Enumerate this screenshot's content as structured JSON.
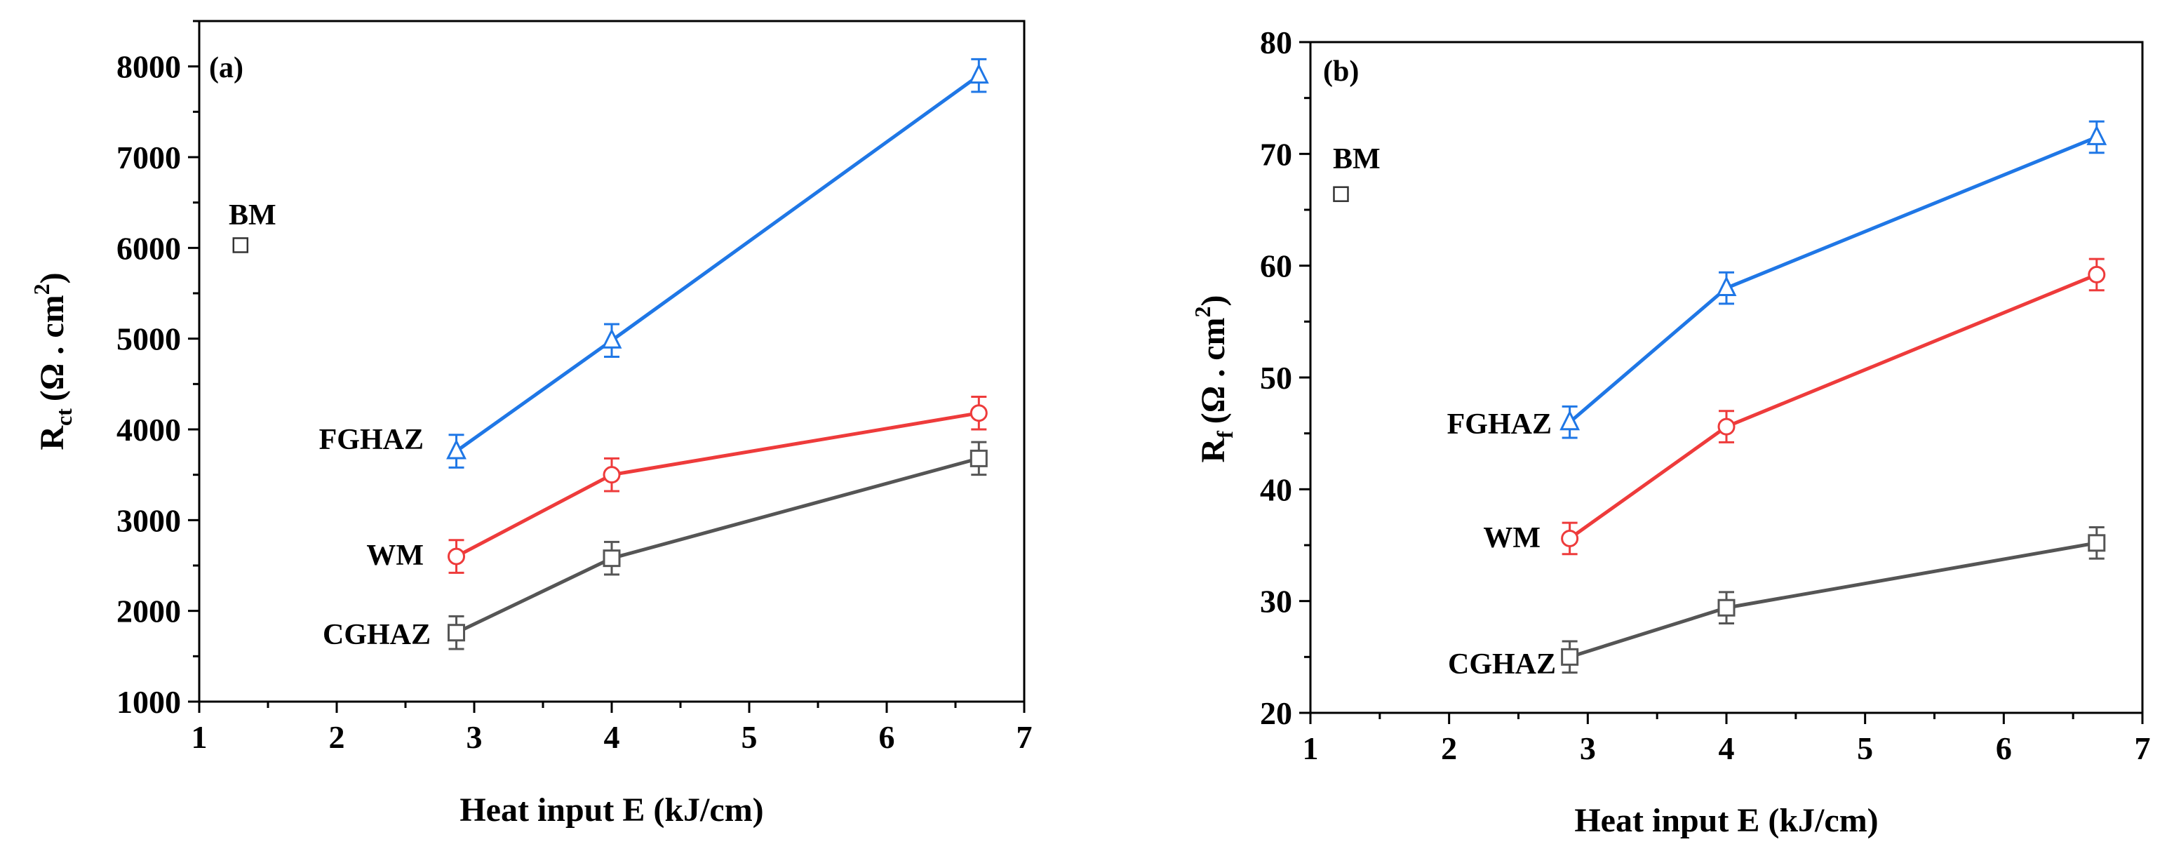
{
  "chart_data": [
    {
      "type": "line",
      "panel_label": "(a)",
      "xlabel": "Heat input E (kJ/cm)",
      "ylabel": "R",
      "ylabel_sub": "ct",
      "ylabel_unit": "(Ω . cm",
      "ylabel_sup": "2",
      "ylabel_close": ")",
      "xlim": [
        1,
        7
      ],
      "ylim": [
        1000,
        8500
      ],
      "xticks": [
        1,
        2,
        3,
        4,
        5,
        6,
        7
      ],
      "yticks": [
        1000,
        2000,
        3000,
        4000,
        5000,
        6000,
        7000,
        8000
      ],
      "grid": false,
      "series": [
        {
          "name": "FGHAZ",
          "color": "#1f77e6",
          "marker": "triangle",
          "x": [
            2.87,
            4.0,
            6.67
          ],
          "values": [
            3760,
            4980,
            7900
          ],
          "errors": [
            180,
            180,
            180
          ]
        },
        {
          "name": "WM",
          "color": "#ee3b3b",
          "marker": "circle",
          "x": [
            2.87,
            4.0,
            6.67
          ],
          "values": [
            2600,
            3500,
            4180
          ],
          "errors": [
            180,
            180,
            180
          ]
        },
        {
          "name": "CGHAZ",
          "color": "#555555",
          "marker": "square",
          "x": [
            2.87,
            4.0,
            6.67
          ],
          "values": [
            1760,
            2580,
            3680
          ],
          "errors": [
            180,
            180,
            180
          ]
        }
      ],
      "reference": {
        "name": "BM",
        "color": "#333333",
        "marker": "square",
        "x": 1.3,
        "value": 6030
      }
    },
    {
      "type": "line",
      "panel_label": "(b)",
      "xlabel": "Heat input E (kJ/cm)",
      "ylabel": "R",
      "ylabel_sub": "f",
      "ylabel_unit": "(Ω . cm",
      "ylabel_sup": "2",
      "ylabel_close": ")",
      "xlim": [
        1,
        7
      ],
      "ylim": [
        20,
        80
      ],
      "xticks": [
        1,
        2,
        3,
        4,
        5,
        6,
        7
      ],
      "yticks": [
        20,
        30,
        40,
        50,
        60,
        70,
        80
      ],
      "grid": false,
      "series": [
        {
          "name": "FGHAZ",
          "color": "#1f77e6",
          "marker": "triangle",
          "x": [
            2.87,
            4.0,
            6.67
          ],
          "values": [
            46,
            58,
            71.5
          ],
          "errors": [
            1.4,
            1.4,
            1.4
          ]
        },
        {
          "name": "WM",
          "color": "#ee3b3b",
          "marker": "circle",
          "x": [
            2.87,
            4.0,
            6.67
          ],
          "values": [
            35.6,
            45.6,
            59.2
          ],
          "errors": [
            1.4,
            1.4,
            1.4
          ]
        },
        {
          "name": "CGHAZ",
          "color": "#555555",
          "marker": "square",
          "x": [
            2.87,
            4.0,
            6.67
          ],
          "values": [
            25,
            29.4,
            35.2
          ],
          "errors": [
            1.4,
            1.4,
            1.4
          ]
        }
      ],
      "reference": {
        "name": "BM",
        "color": "#333333",
        "marker": "square",
        "x": 1.22,
        "value": 66.4
      }
    }
  ]
}
